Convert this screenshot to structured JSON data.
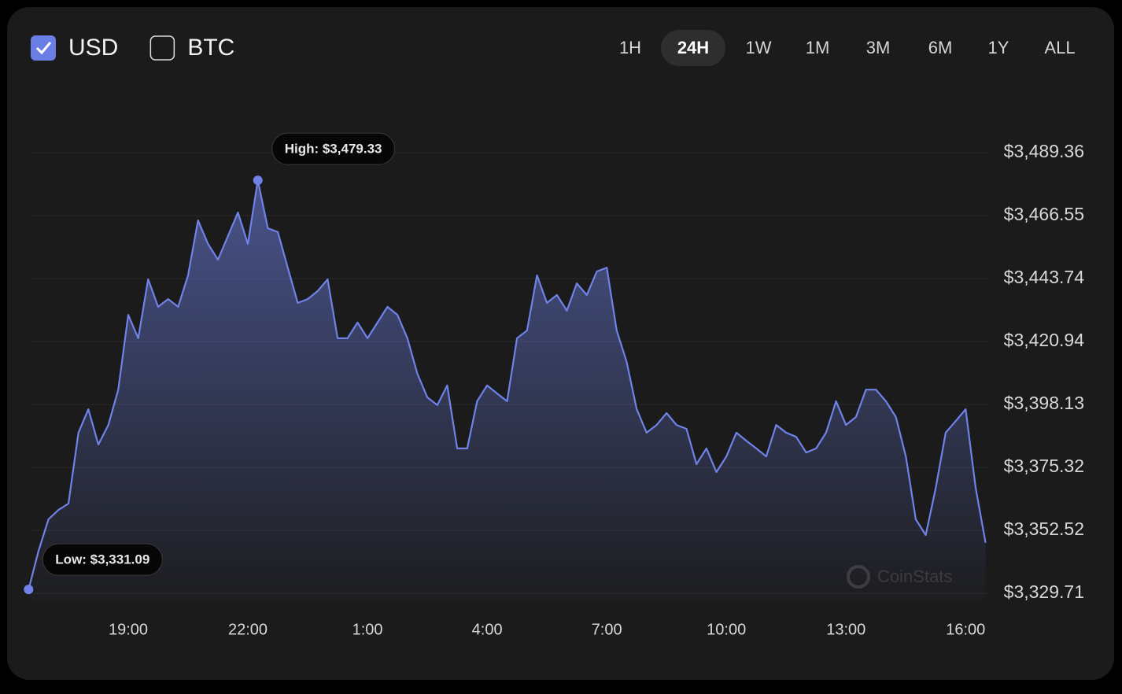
{
  "controls": {
    "currencies": [
      {
        "label": "USD",
        "checked": true
      },
      {
        "label": "BTC",
        "checked": false
      }
    ],
    "ranges": [
      "1H",
      "24H",
      "1W",
      "1M",
      "3M",
      "6M",
      "1Y",
      "ALL"
    ],
    "active_range": "24H"
  },
  "watermark": "CoinStats",
  "chart_data": {
    "type": "area",
    "color": "#6f82e8",
    "categories": [
      null,
      null,
      null,
      null,
      null,
      null,
      null,
      null,
      null,
      null,
      "19:00",
      null,
      null,
      null,
      null,
      null,
      null,
      null,
      null,
      null,
      null,
      null,
      "22:00",
      null,
      null,
      null,
      null,
      null,
      null,
      null,
      null,
      null,
      null,
      null,
      "1:00",
      null,
      null,
      null,
      null,
      null,
      null,
      null,
      null,
      null,
      null,
      null,
      "4:00",
      null,
      null,
      null,
      null,
      null,
      null,
      null,
      null,
      null,
      null,
      null,
      "7:00",
      null,
      null,
      null,
      null,
      null,
      null,
      null,
      null,
      null,
      null,
      null,
      "10:00",
      null,
      null,
      null,
      null,
      null,
      null,
      null,
      null,
      null,
      null,
      null,
      "13:00",
      null,
      null,
      null,
      null,
      null,
      null,
      null,
      null,
      null,
      null,
      null,
      "16:00",
      null,
      null
    ],
    "values": [
      3331.09,
      3345.1,
      3356.5,
      3359.9,
      3362.2,
      3387.9,
      3396.4,
      3383.6,
      3390.7,
      3403.5,
      3430.6,
      3422.1,
      3443.5,
      3433.5,
      3436.3,
      3433.5,
      3444.9,
      3464.8,
      3456.3,
      3450.6,
      3459.1,
      3467.7,
      3456.3,
      3479.33,
      3462.0,
      3460.6,
      3447.7,
      3434.9,
      3436.3,
      3439.2,
      3443.5,
      3422.1,
      3422.1,
      3427.8,
      3422.1,
      3427.8,
      3433.5,
      3430.6,
      3422.1,
      3409.3,
      3400.7,
      3397.9,
      3405.0,
      3382.2,
      3382.2,
      3399.3,
      3405.0,
      3402.1,
      3399.3,
      3422.1,
      3424.9,
      3444.9,
      3434.9,
      3437.8,
      3432.1,
      3442.0,
      3437.8,
      3446.3,
      3447.7,
      3424.9,
      3413.5,
      3396.4,
      3387.9,
      3390.7,
      3395.0,
      3390.7,
      3389.3,
      3376.5,
      3382.2,
      3373.6,
      3379.3,
      3387.9,
      3385.0,
      3382.2,
      3379.3,
      3390.7,
      3387.9,
      3386.4,
      3380.7,
      3382.2,
      3387.9,
      3399.3,
      3390.7,
      3393.6,
      3403.5,
      3403.5,
      3399.3,
      3393.6,
      3379.3,
      3356.5,
      3350.8,
      3367.9,
      3387.9,
      3392.1,
      3396.4,
      3367.9,
      3348.0
    ],
    "ylim": [
      3329.71,
      3489.36
    ],
    "yticks": [
      {
        "value": 3329.71,
        "label": "$3,329.71"
      },
      {
        "value": 3352.52,
        "label": "$3,352.52"
      },
      {
        "value": 3375.32,
        "label": "$3,375.32"
      },
      {
        "value": 3398.13,
        "label": "$3,398.13"
      },
      {
        "value": 3420.94,
        "label": "$3,420.94"
      },
      {
        "value": 3443.74,
        "label": "$3,443.74"
      },
      {
        "value": 3466.55,
        "label": "$3,466.55"
      },
      {
        "value": 3489.36,
        "label": "$3,489.36"
      }
    ],
    "grid": true,
    "annotations": [
      {
        "text": "High: $3,479.33",
        "index": 23,
        "value": 3479.33
      },
      {
        "text": "Low: $3,331.09",
        "index": 0,
        "value": 3331.09
      }
    ]
  }
}
